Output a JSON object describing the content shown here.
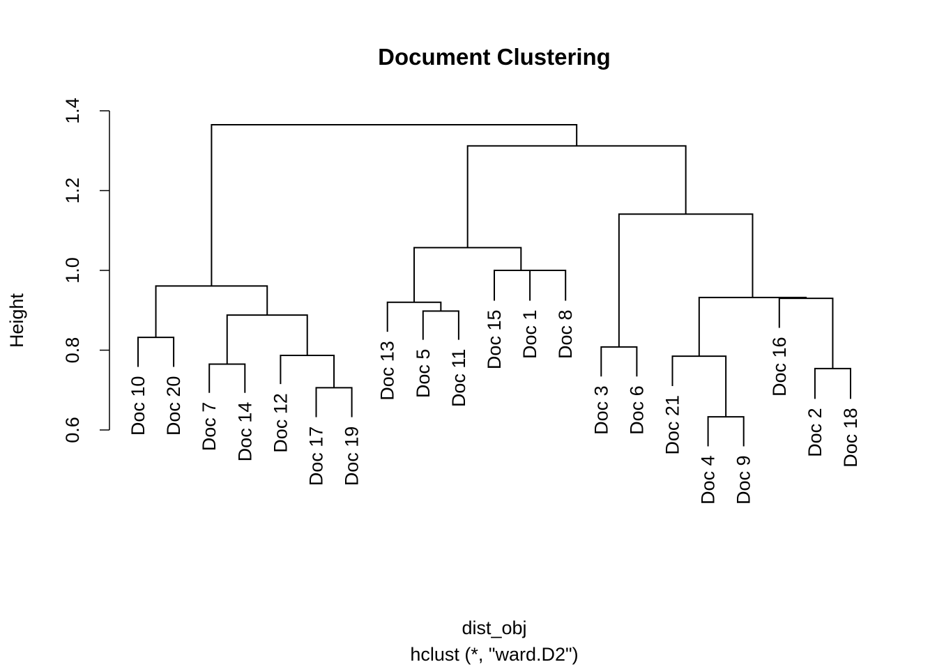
{
  "chart_data": {
    "type": "dendrogram",
    "title": "Document Clustering",
    "ylabel": "Height",
    "xlabel": "dist_obj",
    "sublabel": "hclust (*, \"ward.D2\")",
    "ylim": [
      0.6,
      1.4
    ],
    "yticks": [
      "0.6",
      "0.8",
      "1.0",
      "1.2",
      "1.4"
    ],
    "leaves": [
      {
        "label": "Doc 10",
        "height": 0.758
      },
      {
        "label": "Doc 20",
        "height": 0.758
      },
      {
        "label": "Doc 7",
        "height": 0.693
      },
      {
        "label": "Doc 14",
        "height": 0.693
      },
      {
        "label": "Doc 12",
        "height": 0.715
      },
      {
        "label": "Doc 17",
        "height": 0.632
      },
      {
        "label": "Doc 19",
        "height": 0.632
      },
      {
        "label": "Doc 13",
        "height": 0.846
      },
      {
        "label": "Doc 5",
        "height": 0.826
      },
      {
        "label": "Doc 11",
        "height": 0.826
      },
      {
        "label": "Doc 15",
        "height": 0.924
      },
      {
        "label": "Doc 1",
        "height": 0.924
      },
      {
        "label": "Doc 8",
        "height": 0.924
      },
      {
        "label": "Doc 3",
        "height": 0.734
      },
      {
        "label": "Doc 6",
        "height": 0.734
      },
      {
        "label": "Doc 21",
        "height": 0.71
      },
      {
        "label": "Doc 4",
        "height": 0.559
      },
      {
        "label": "Doc 9",
        "height": 0.559
      },
      {
        "label": "Doc 16",
        "height": 0.856
      },
      {
        "label": "Doc 2",
        "height": 0.678
      },
      {
        "label": "Doc 18",
        "height": 0.678
      }
    ],
    "merges": [
      {
        "left": [
          "leaf",
          0
        ],
        "right": [
          "leaf",
          1
        ],
        "height": 0.832
      },
      {
        "left": [
          "leaf",
          2
        ],
        "right": [
          "leaf",
          3
        ],
        "height": 0.765
      },
      {
        "left": [
          "leaf",
          5
        ],
        "right": [
          "leaf",
          6
        ],
        "height": 0.706
      },
      {
        "left": [
          "leaf",
          4
        ],
        "right": [
          "merge",
          2
        ],
        "height": 0.787
      },
      {
        "left": [
          "merge",
          1
        ],
        "right": [
          "merge",
          3
        ],
        "height": 0.888
      },
      {
        "left": [
          "merge",
          0
        ],
        "right": [
          "merge",
          4
        ],
        "height": 0.961
      },
      {
        "left": [
          "leaf",
          8
        ],
        "right": [
          "leaf",
          9
        ],
        "height": 0.898
      },
      {
        "left": [
          "leaf",
          7
        ],
        "right": [
          "merge",
          6
        ],
        "height": 0.92
      },
      {
        "left": [
          "leaf",
          11
        ],
        "right": [
          "leaf",
          12
        ],
        "height": 1.0
      },
      {
        "left": [
          "leaf",
          10
        ],
        "right": [
          "merge",
          8
        ],
        "height": 1.0
      },
      {
        "left": [
          "merge",
          7
        ],
        "right": [
          "merge",
          9
        ],
        "height": 1.057
      },
      {
        "left": [
          "leaf",
          13
        ],
        "right": [
          "leaf",
          14
        ],
        "height": 0.808
      },
      {
        "left": [
          "leaf",
          16
        ],
        "right": [
          "leaf",
          17
        ],
        "height": 0.633
      },
      {
        "left": [
          "leaf",
          15
        ],
        "right": [
          "merge",
          12
        ],
        "height": 0.785
      },
      {
        "left": [
          "leaf",
          19
        ],
        "right": [
          "leaf",
          20
        ],
        "height": 0.754
      },
      {
        "left": [
          "leaf",
          18
        ],
        "right": [
          "merge",
          14
        ],
        "height": 0.93
      },
      {
        "left": [
          "merge",
          13
        ],
        "right": [
          "merge",
          15
        ],
        "height": 0.932
      },
      {
        "left": [
          "merge",
          11
        ],
        "right": [
          "merge",
          16
        ],
        "height": 1.141
      },
      {
        "left": [
          "merge",
          10
        ],
        "right": [
          "merge",
          17
        ],
        "height": 1.312
      },
      {
        "left": [
          "merge",
          5
        ],
        "right": [
          "merge",
          18
        ],
        "height": 1.365
      }
    ],
    "line_color": "#000000"
  }
}
